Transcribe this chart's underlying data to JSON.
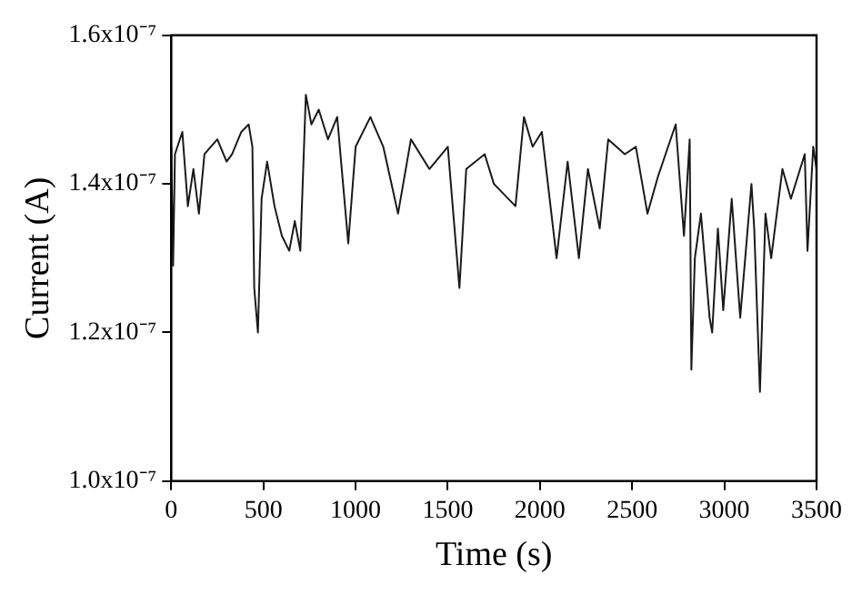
{
  "chart_data": {
    "type": "line",
    "xlabel": "Time (s)",
    "ylabel": "Current (A)",
    "x": [
      0,
      10,
      20,
      60,
      90,
      120,
      150,
      180,
      250,
      300,
      330,
      380,
      420,
      440,
      450,
      470,
      490,
      520,
      560,
      600,
      640,
      670,
      700,
      730,
      760,
      800,
      850,
      900,
      960,
      1000,
      1080,
      1150,
      1230,
      1300,
      1400,
      1500,
      1563,
      1600,
      1700,
      1750,
      1867,
      1913,
      1960,
      2010,
      2090,
      2150,
      2211,
      2260,
      2324,
      2370,
      2460,
      2520,
      2583,
      2640,
      2736,
      2781,
      2812,
      2821,
      2840,
      2873,
      2920,
      2934,
      2965,
      2994,
      3040,
      3086,
      3147,
      3162,
      3193,
      3223,
      3254,
      3315,
      3361,
      3436,
      3451,
      3482,
      3500
    ],
    "series": [
      {
        "color": "#1a1a1a",
        "values": [
          1.45e-07,
          1.29e-07,
          1.44e-07,
          1.47e-07,
          1.37e-07,
          1.42e-07,
          1.36e-07,
          1.44e-07,
          1.46e-07,
          1.43e-07,
          1.44e-07,
          1.47e-07,
          1.48e-07,
          1.45e-07,
          1.26e-07,
          1.2e-07,
          1.38e-07,
          1.43e-07,
          1.37e-07,
          1.33e-07,
          1.31e-07,
          1.35e-07,
          1.31e-07,
          1.52e-07,
          1.48e-07,
          1.5e-07,
          1.46e-07,
          1.49e-07,
          1.32e-07,
          1.45e-07,
          1.49e-07,
          1.45e-07,
          1.36e-07,
          1.46e-07,
          1.42e-07,
          1.45e-07,
          1.26e-07,
          1.42e-07,
          1.44e-07,
          1.4e-07,
          1.37e-07,
          1.49e-07,
          1.45e-07,
          1.47e-07,
          1.3e-07,
          1.43e-07,
          1.3e-07,
          1.42e-07,
          1.34e-07,
          1.46e-07,
          1.44e-07,
          1.45e-07,
          1.36e-07,
          1.41e-07,
          1.48e-07,
          1.33e-07,
          1.46e-07,
          1.15e-07,
          1.3e-07,
          1.36e-07,
          1.22e-07,
          1.2e-07,
          1.34e-07,
          1.23e-07,
          1.38e-07,
          1.22e-07,
          1.4e-07,
          1.34e-07,
          1.12e-07,
          1.36e-07,
          1.3e-07,
          1.42e-07,
          1.38e-07,
          1.44e-07,
          1.31e-07,
          1.45e-07,
          1.42e-07
        ]
      }
    ],
    "xlim": [
      0,
      3500
    ],
    "xticks": [
      0,
      500,
      1000,
      1500,
      2000,
      2500,
      3000,
      3500
    ],
    "ylim": [
      1e-07,
      1.6e-07
    ],
    "yticks": [
      {
        "value": 1e-07,
        "label": "1.0x10⁻⁷"
      },
      {
        "value": 1.2e-07,
        "label": "1.2x10⁻⁷"
      },
      {
        "value": 1.4e-07,
        "label": "1.4x10⁻⁷"
      },
      {
        "value": 1.6e-07,
        "label": "1.6x10⁻⁷"
      }
    ],
    "grid": false,
    "legend": false,
    "marker": "none",
    "line_style": "solid"
  }
}
